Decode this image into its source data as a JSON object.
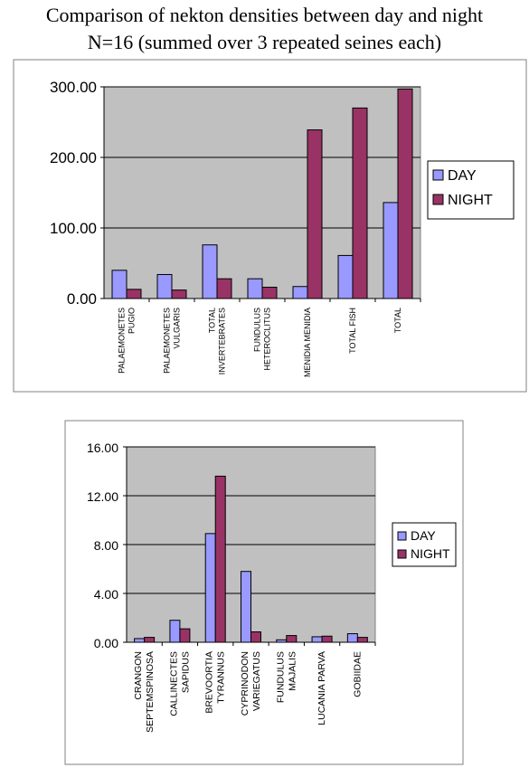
{
  "titles": {
    "line1": "Comparison of nekton densities between day and night",
    "line2": "N=16 (summed over 3 repeated seines each)"
  },
  "colors": {
    "day": "#9999FF",
    "night": "#993366",
    "plot_bg": "#C0C0C0",
    "gridline": "#000000"
  },
  "chart_data": [
    {
      "type": "bar",
      "title": "",
      "xlabel": "",
      "ylabel": "",
      "ylim": [
        0,
        300
      ],
      "yticks": [
        "0.00",
        "100.00",
        "200.00",
        "300.00"
      ],
      "ytick_values": [
        0,
        100,
        200,
        300
      ],
      "grid": true,
      "legend_position": "right",
      "categories": [
        [
          "PALAEMONETES",
          "PUGIO"
        ],
        [
          "PALAEMONETES",
          "VULGARIS"
        ],
        [
          "TOTAL",
          "INVERTEBRATES"
        ],
        [
          "FUNDULUS",
          "HETEROCLITUS"
        ],
        [
          "MENIDIA MENIDIA"
        ],
        [
          "TOTAL FISH"
        ],
        [
          "TOTAL"
        ]
      ],
      "series": [
        {
          "name": "DAY",
          "values": [
            40,
            34,
            76,
            28,
            17,
            61,
            136
          ]
        },
        {
          "name": "NIGHT",
          "values": [
            13,
            12,
            28,
            16,
            239,
            270,
            297
          ]
        }
      ]
    },
    {
      "type": "bar",
      "title": "",
      "xlabel": "",
      "ylabel": "",
      "ylim": [
        0,
        16
      ],
      "yticks": [
        "0.00",
        "4.00",
        "8.00",
        "12.00",
        "16.00"
      ],
      "ytick_values": [
        0,
        4,
        8,
        12,
        16
      ],
      "grid": true,
      "legend_position": "right",
      "categories": [
        [
          "CRANGON",
          "SEPTEMSPINOSA"
        ],
        [
          "CALLINECTES",
          "SAPIDUS"
        ],
        [
          "BREVOORTIA",
          "TYRANNUS"
        ],
        [
          "CYPRINODON",
          "VARIEGATUS"
        ],
        [
          "FUNDULUS",
          "MAJALIS"
        ],
        [
          "LUCANIA PARVA"
        ],
        [
          "GOBIIDAE"
        ]
      ],
      "series": [
        {
          "name": "DAY",
          "values": [
            0.3,
            1.8,
            8.9,
            5.8,
            0.2,
            0.45,
            0.7
          ]
        },
        {
          "name": "NIGHT",
          "values": [
            0.4,
            1.1,
            13.6,
            0.85,
            0.55,
            0.5,
            0.4
          ]
        }
      ]
    }
  ]
}
